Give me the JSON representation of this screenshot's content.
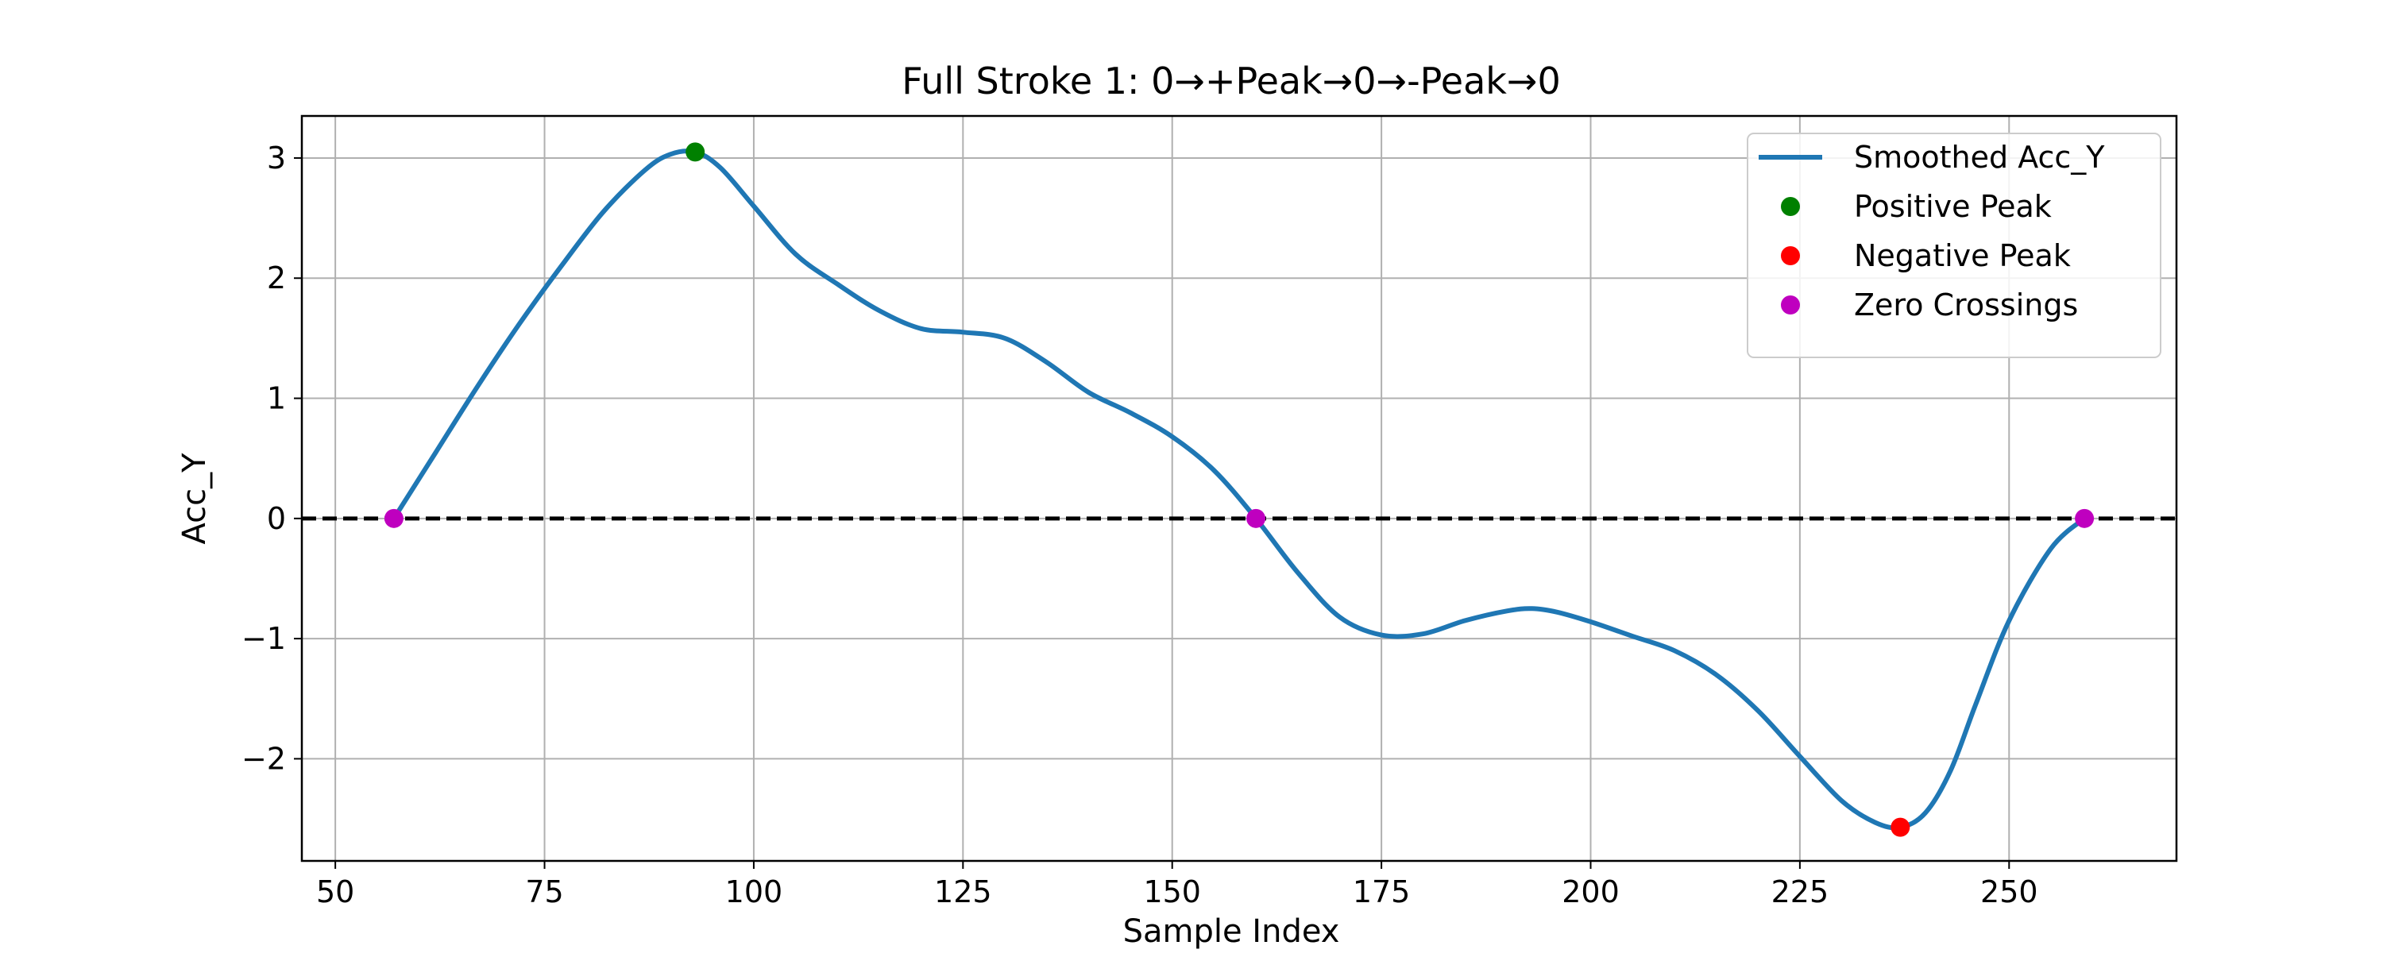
{
  "chart_data": {
    "type": "line",
    "title": "Full Stroke 1: 0→+Peak→0→-Peak→0",
    "xlabel": "Sample Index",
    "ylabel": "Acc_Y",
    "xlim": [
      46,
      270
    ],
    "ylim": [
      -2.85,
      3.35
    ],
    "xticks": [
      50,
      75,
      100,
      125,
      150,
      175,
      200,
      225,
      250
    ],
    "xtick_labels": [
      "50",
      "75",
      "100",
      "125",
      "150",
      "175",
      "200",
      "225",
      "250"
    ],
    "yticks": [
      -2,
      -1,
      0,
      1,
      2,
      3
    ],
    "ytick_labels": [
      "−2",
      "−1",
      "0",
      "1",
      "2",
      "3"
    ],
    "grid": true,
    "legend_position": "top-right",
    "reference_line": {
      "y": 0,
      "style": "dashed",
      "color": "#000000"
    },
    "series": [
      {
        "name": "Smoothed Acc_Y",
        "kind": "line",
        "color": "#1f77b4",
        "x": [
          57,
          62,
          67,
          72,
          77,
          82,
          87,
          90,
          93,
          96,
          100,
          105,
          110,
          115,
          120,
          125,
          130,
          135,
          140,
          145,
          150,
          155,
          160,
          165,
          170,
          175,
          180,
          185,
          190,
          193,
          196,
          200,
          205,
          210,
          215,
          220,
          225,
          230,
          234,
          237,
          240,
          243,
          246,
          250,
          255,
          259
        ],
        "y": [
          0.0,
          0.55,
          1.1,
          1.62,
          2.1,
          2.55,
          2.9,
          3.03,
          3.05,
          2.92,
          2.6,
          2.2,
          1.95,
          1.73,
          1.58,
          1.55,
          1.5,
          1.3,
          1.05,
          0.88,
          0.68,
          0.4,
          0.0,
          -0.45,
          -0.82,
          -0.97,
          -0.96,
          -0.85,
          -0.77,
          -0.75,
          -0.78,
          -0.86,
          -0.98,
          -1.1,
          -1.3,
          -1.6,
          -1.98,
          -2.35,
          -2.53,
          -2.57,
          -2.45,
          -2.1,
          -1.55,
          -0.85,
          -0.25,
          0.0
        ]
      },
      {
        "name": "Positive Peak",
        "kind": "marker",
        "color": "#008000",
        "x": [
          93
        ],
        "y": [
          3.05
        ]
      },
      {
        "name": "Negative Peak",
        "kind": "marker",
        "color": "#ff0000",
        "x": [
          237
        ],
        "y": [
          -2.57
        ]
      },
      {
        "name": "Zero Crossings",
        "kind": "marker",
        "color": "#bf00bf",
        "x": [
          57,
          160,
          259
        ],
        "y": [
          0,
          0,
          0
        ]
      }
    ]
  }
}
